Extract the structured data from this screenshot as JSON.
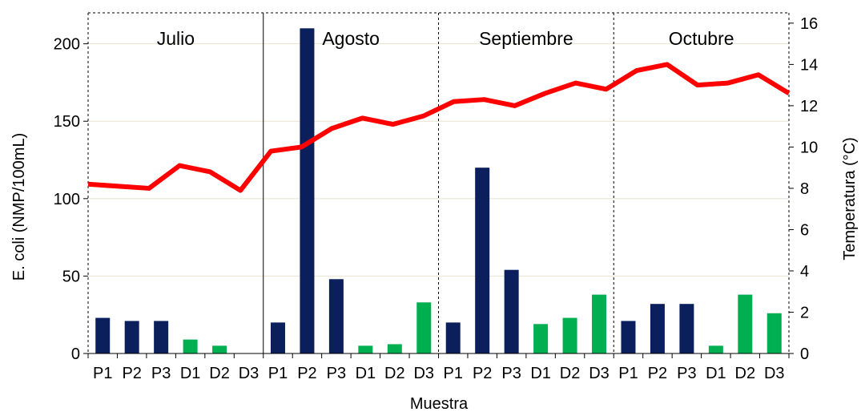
{
  "chart_data": {
    "type": "bar",
    "title": "",
    "xlabel": "Muestra",
    "ylabel": "E. coli (NMP/100mL)",
    "y2label": "Temperatura (°C)",
    "ylim": [
      0,
      220
    ],
    "y2lim": [
      0,
      16.5
    ],
    "yticks": [
      0,
      50,
      100,
      150,
      200
    ],
    "y2ticks": [
      0,
      2,
      4,
      6,
      8,
      10,
      12,
      14,
      16
    ],
    "grid": true,
    "legend": "none",
    "groups": [
      "Julio",
      "Agosto",
      "Septiembre",
      "Octubre"
    ],
    "categories": [
      "P1",
      "P2",
      "P3",
      "D1",
      "D2",
      "D3",
      "P1",
      "P2",
      "P3",
      "D1",
      "D2",
      "D3",
      "P1",
      "P2",
      "P3",
      "D1",
      "D2",
      "D3",
      "P1",
      "P2",
      "P3",
      "D1",
      "D2",
      "D3"
    ],
    "bar_colors": {
      "P": "#0b1f5c",
      "D": "#00b050"
    },
    "bars": [
      23,
      21,
      21,
      9,
      5,
      0,
      20,
      210,
      48,
      5,
      6,
      33,
      20,
      120,
      54,
      19,
      23,
      38,
      21,
      32,
      32,
      5,
      38,
      26
    ],
    "line_color": "#ff0000",
    "temperature": [
      8.2,
      8.1,
      8.0,
      9.1,
      8.8,
      7.9,
      9.8,
      10.0,
      10.9,
      11.4,
      11.1,
      11.5,
      12.2,
      12.3,
      12.0,
      12.6,
      13.1,
      12.8,
      13.7,
      14.0,
      13.0,
      13.1,
      13.5,
      12.6
    ]
  }
}
